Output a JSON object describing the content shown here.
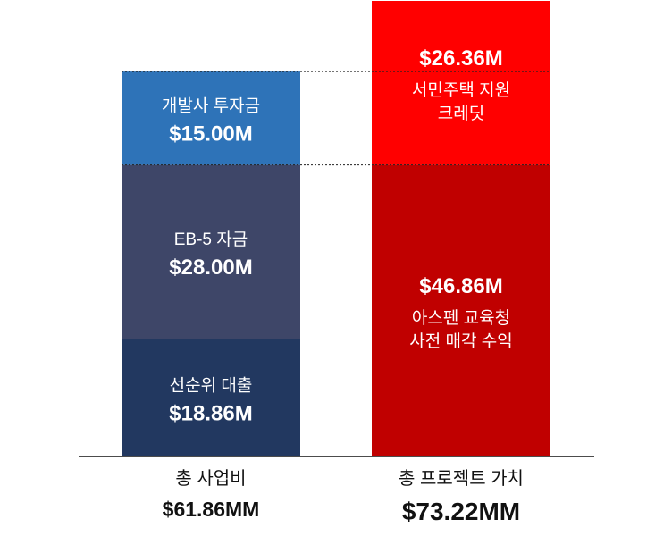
{
  "chart_data": {
    "type": "bar",
    "stacked": true,
    "categories": [
      "총 사업비",
      "총 프로젝트 가치"
    ],
    "totals": [
      "$61.86MM",
      "$73.22MM"
    ],
    "stacks": [
      {
        "category": "총 사업비",
        "segments": [
          {
            "label": "선순위 대출",
            "value": 18.86,
            "value_text": "$18.86M",
            "color": "#223860"
          },
          {
            "label": "EB-5 자금",
            "value": 28.0,
            "value_text": "$28.00M",
            "color": "#3e4668"
          },
          {
            "label": "개발사 투자금",
            "value": 15.0,
            "value_text": "$15.00M",
            "color": "#2e73b8"
          }
        ]
      },
      {
        "category": "총 프로젝트 가치",
        "segments": [
          {
            "label": "아스펜 교육청\n사전 매각 수익",
            "value": 46.86,
            "value_text": "$46.86M",
            "color": "#c00000"
          },
          {
            "label": "서민주택 지원\n크레딧",
            "value": 26.36,
            "value_text": "$26.36M",
            "color": "#ff0000"
          }
        ]
      }
    ],
    "ylim": [
      0,
      73.22
    ],
    "grid": false,
    "legend": "none"
  }
}
